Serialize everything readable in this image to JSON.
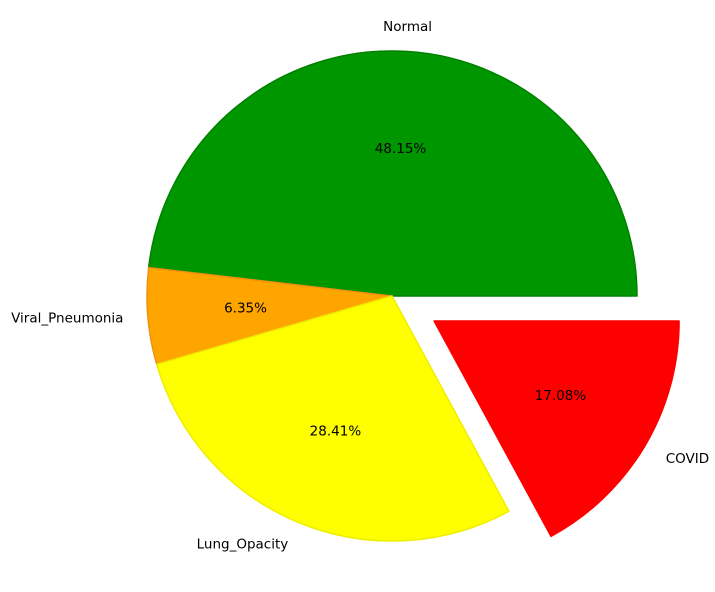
{
  "chart_data": {
    "type": "pie",
    "start_angle_deg": 0,
    "direction": "counterclockwise",
    "slices": [
      {
        "label": "Normal",
        "percent_text": "48.15%",
        "value": 48.15,
        "color": "#009600",
        "edge": "#008200",
        "explode": 0
      },
      {
        "label": "Viral_Pneumonia",
        "percent_text": "6.35%",
        "value": 6.35,
        "color": "#ffa500",
        "edge": "#f09010",
        "explode": 0
      },
      {
        "label": "Lung_Opacity",
        "percent_text": "28.41%",
        "value": 28.41,
        "color": "#ffff00",
        "edge": "#eeee00",
        "explode": 0
      },
      {
        "label": "COVID",
        "percent_text": "17.08%",
        "value": 17.08,
        "color": "#ff0000",
        "edge": "#ff0000",
        "explode": 0.2
      }
    ]
  }
}
